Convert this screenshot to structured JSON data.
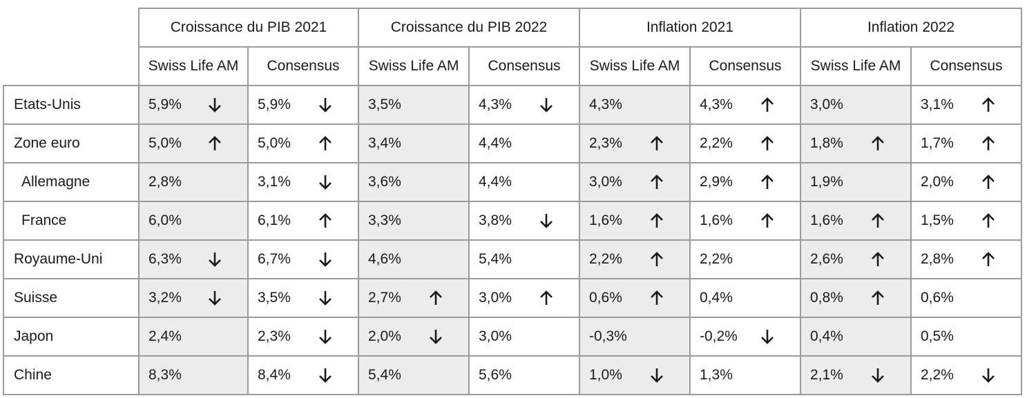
{
  "groups": [
    "Croissance du PIB 2021",
    "Croissance du PIB 2022",
    "Inflation 2021",
    "Inflation 2022"
  ],
  "subheaders": [
    "Swiss Life AM",
    "Consensus"
  ],
  "rows": [
    {
      "country": "Etats-Unis",
      "indent": false,
      "cells": [
        {
          "value": "5,9%",
          "arrow": "down"
        },
        {
          "value": "5,9%",
          "arrow": "down"
        },
        {
          "value": "3,5%",
          "arrow": ""
        },
        {
          "value": "4,3%",
          "arrow": "down"
        },
        {
          "value": "4,3%",
          "arrow": ""
        },
        {
          "value": "4,3%",
          "arrow": "up"
        },
        {
          "value": "3,0%",
          "arrow": ""
        },
        {
          "value": "3,1%",
          "arrow": "up"
        }
      ]
    },
    {
      "country": "Zone euro",
      "indent": false,
      "cells": [
        {
          "value": "5,0%",
          "arrow": "up"
        },
        {
          "value": "5,0%",
          "arrow": "up"
        },
        {
          "value": "3,4%",
          "arrow": ""
        },
        {
          "value": "4,4%",
          "arrow": ""
        },
        {
          "value": "2,3%",
          "arrow": "up"
        },
        {
          "value": "2,2%",
          "arrow": "up"
        },
        {
          "value": "1,8%",
          "arrow": "up"
        },
        {
          "value": "1,7%",
          "arrow": "up"
        }
      ]
    },
    {
      "country": "Allemagne",
      "indent": true,
      "cells": [
        {
          "value": "2,8%",
          "arrow": ""
        },
        {
          "value": "3,1%",
          "arrow": "down"
        },
        {
          "value": "3,6%",
          "arrow": ""
        },
        {
          "value": "4,4%",
          "arrow": ""
        },
        {
          "value": "3,0%",
          "arrow": "up"
        },
        {
          "value": "2,9%",
          "arrow": "up"
        },
        {
          "value": "1,9%",
          "arrow": ""
        },
        {
          "value": "2,0%",
          "arrow": "up"
        }
      ]
    },
    {
      "country": "France",
      "indent": true,
      "cells": [
        {
          "value": "6,0%",
          "arrow": ""
        },
        {
          "value": "6,1%",
          "arrow": "up"
        },
        {
          "value": "3,3%",
          "arrow": ""
        },
        {
          "value": "3,8%",
          "arrow": "down"
        },
        {
          "value": "1,6%",
          "arrow": "up"
        },
        {
          "value": "1,6%",
          "arrow": "up"
        },
        {
          "value": "1,6%",
          "arrow": "up"
        },
        {
          "value": "1,5%",
          "arrow": "up"
        }
      ]
    },
    {
      "country": "Royaume-Uni",
      "indent": false,
      "cells": [
        {
          "value": "6,3%",
          "arrow": "down"
        },
        {
          "value": "6,7%",
          "arrow": "down"
        },
        {
          "value": "4,6%",
          "arrow": ""
        },
        {
          "value": "5,4%",
          "arrow": ""
        },
        {
          "value": "2,2%",
          "arrow": "up"
        },
        {
          "value": "2,2%",
          "arrow": ""
        },
        {
          "value": "2,6%",
          "arrow": "up"
        },
        {
          "value": "2,8%",
          "arrow": "up"
        }
      ]
    },
    {
      "country": "Suisse",
      "indent": false,
      "cells": [
        {
          "value": "3,2%",
          "arrow": "down"
        },
        {
          "value": "3,5%",
          "arrow": "down"
        },
        {
          "value": "2,7%",
          "arrow": "up"
        },
        {
          "value": "3,0%",
          "arrow": "up"
        },
        {
          "value": "0,6%",
          "arrow": "up"
        },
        {
          "value": "0,4%",
          "arrow": ""
        },
        {
          "value": "0,8%",
          "arrow": "up"
        },
        {
          "value": "0,6%",
          "arrow": ""
        }
      ]
    },
    {
      "country": "Japon",
      "indent": false,
      "cells": [
        {
          "value": "2,4%",
          "arrow": ""
        },
        {
          "value": "2,3%",
          "arrow": "down"
        },
        {
          "value": "2,0%",
          "arrow": "down"
        },
        {
          "value": "3,0%",
          "arrow": ""
        },
        {
          "value": "-0,3%",
          "arrow": ""
        },
        {
          "value": "-0,2%",
          "arrow": "down"
        },
        {
          "value": "0,4%",
          "arrow": ""
        },
        {
          "value": "0,5%",
          "arrow": ""
        }
      ]
    },
    {
      "country": "Chine",
      "indent": false,
      "cells": [
        {
          "value": "8,3%",
          "arrow": ""
        },
        {
          "value": "8,4%",
          "arrow": "down"
        },
        {
          "value": "5,4%",
          "arrow": ""
        },
        {
          "value": "5,6%",
          "arrow": ""
        },
        {
          "value": "1,0%",
          "arrow": "down"
        },
        {
          "value": "1,3%",
          "arrow": ""
        },
        {
          "value": "2,1%",
          "arrow": "down"
        },
        {
          "value": "2,2%",
          "arrow": "down"
        }
      ]
    }
  ],
  "colors": {
    "shaded": "#ececec",
    "border": "#9a9a9a",
    "text": "#1a1a1a"
  }
}
